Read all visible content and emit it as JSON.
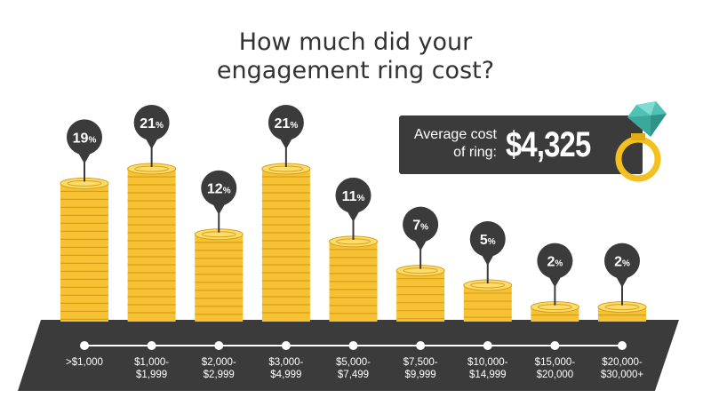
{
  "title_lines": [
    "How much did your",
    "engagement ring cost?"
  ],
  "average": {
    "label_lines": [
      "Average cost",
      "of ring:"
    ],
    "value": "$4,325"
  },
  "colors": {
    "coin": "#f6c234",
    "coin_dark": "#d69f1a",
    "coin_light": "#fddc6a",
    "pin": "#3b3b3b",
    "band": "#3b3b3b",
    "gem": "#4fc2b5",
    "ring": "#f4c020"
  },
  "chart_data": {
    "type": "bar",
    "title": "How much did your engagement ring cost?",
    "categories": [
      [
        ">$1,000"
      ],
      [
        "$1,000-",
        "$1,999"
      ],
      [
        "$2,000-",
        "$2,999"
      ],
      [
        "$3,000-",
        "$4,999"
      ],
      [
        "$5,000-",
        "$7,499"
      ],
      [
        "$7,500-",
        "$9,999"
      ],
      [
        "$10,000-",
        "$14,999"
      ],
      [
        "$15,000-",
        "$20,000"
      ],
      [
        "$20,000-",
        "$30,000+"
      ]
    ],
    "values": [
      19,
      21,
      12,
      21,
      11,
      7,
      5,
      2,
      2
    ],
    "unit": "%",
    "ylim": [
      0,
      21
    ]
  }
}
